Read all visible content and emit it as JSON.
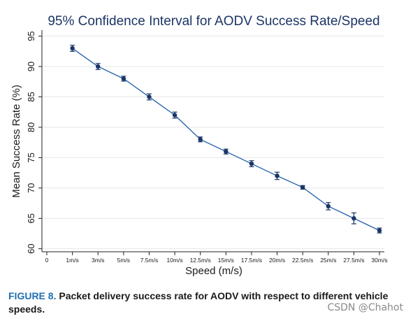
{
  "chart_data": {
    "type": "line",
    "title": "95% Confidence Interval for AODV Success Rate/Speed",
    "xlabel": "Speed (m/s)",
    "ylabel": "Mean Success Rate (%)",
    "categories": [
      "0",
      "1m/s",
      "3m/s",
      "5m/s",
      "7.5m/s",
      "10m/s",
      "12.5m/s",
      "15m/s",
      "17.5m/s",
      "20m/s",
      "22.5m/s",
      "25m/s",
      "27.5m/s",
      "30m/s"
    ],
    "y_ticks": [
      60,
      65,
      70,
      75,
      80,
      85,
      90,
      95
    ],
    "ylim": [
      59.5,
      96
    ],
    "grid": true,
    "series": [
      {
        "x": [
          "1m/s",
          "3m/s",
          "5m/s",
          "7.5m/s",
          "10m/s",
          "12.5m/s",
          "15m/s",
          "17.5m/s",
          "20m/s",
          "22.5m/s",
          "25m/s",
          "27.5m/s",
          "30m/s"
        ],
        "values": [
          93,
          90,
          88,
          85,
          82,
          78,
          76,
          74,
          72,
          70.1,
          67,
          65,
          63
        ],
        "ci_low": [
          92.5,
          89.5,
          87.6,
          84.5,
          81.5,
          77.6,
          75.6,
          73.5,
          71.4,
          69.8,
          66.4,
          64.1,
          62.6
        ],
        "ci_high": [
          93.5,
          90.5,
          88.4,
          85.5,
          82.5,
          78.4,
          76.4,
          74.5,
          72.6,
          70.4,
          67.6,
          65.9,
          63.4
        ]
      }
    ],
    "colors": {
      "line": "#1f5faa",
      "marker": "#1b3566",
      "grid": "#e6e6e6",
      "title": "#1b3566",
      "axis": "#222222"
    }
  },
  "caption": {
    "label": "FIGURE 8.",
    "text": "Packet delivery success rate for AODV with respect to different vehicle speeds."
  },
  "watermark": "CSDN @Chahot"
}
